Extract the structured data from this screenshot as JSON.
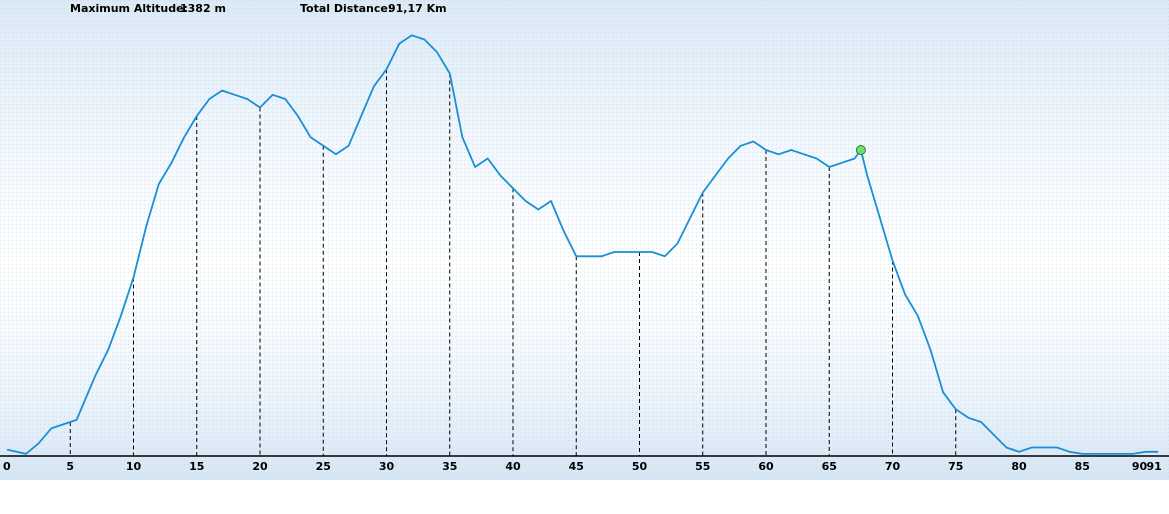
{
  "header": {
    "max_altitude_label": "Maximum Altitude:",
    "max_altitude_value": "1382 m",
    "total_distance_label": "Total Distance:",
    "total_distance_value": "91,17 Km"
  },
  "chart_data": {
    "type": "area",
    "xlabel": "",
    "ylabel": "",
    "x_unit": "Km",
    "y_unit": "m",
    "xlim": [
      0,
      91.17
    ],
    "x_ticks": [
      0,
      5,
      10,
      15,
      20,
      25,
      30,
      35,
      40,
      45,
      50,
      55,
      60,
      65,
      70,
      75,
      80,
      85,
      90,
      91
    ],
    "x_tick_labels": [
      "0",
      "5",
      "10",
      "15",
      "20",
      "25",
      "30",
      "35",
      "40",
      "45",
      "50",
      "55",
      "60",
      "65",
      "70",
      "75",
      "80",
      "85",
      "90",
      "91"
    ],
    "max_altitude": 1382,
    "total_distance": 91.17,
    "altitude_scale": "relative",
    "series": [
      {
        "x": [
          0,
          1.5,
          2.5,
          3.5,
          4.5,
          5.5,
          6,
          7,
          8,
          9,
          10,
          11,
          12,
          13,
          14,
          15,
          16,
          17,
          18,
          19,
          20,
          21,
          22,
          23,
          24,
          25,
          26,
          27,
          28,
          29,
          30,
          31,
          32,
          33,
          34,
          35,
          36,
          37,
          38,
          39,
          40,
          41,
          42,
          43,
          44,
          45,
          46,
          47,
          48,
          49,
          50,
          51,
          52,
          53,
          54,
          55,
          56,
          57,
          58,
          59,
          60,
          61,
          62,
          63,
          64,
          65,
          66,
          67,
          67.5,
          68,
          69,
          70,
          71,
          72,
          73,
          74,
          75,
          76,
          77,
          78,
          79,
          80,
          81,
          82,
          83,
          84,
          85,
          86,
          87,
          88,
          89,
          90,
          91
        ],
        "y": [
          1.5,
          0.5,
          3,
          6.5,
          7.5,
          8.5,
          12,
          19,
          25,
          33,
          42,
          54,
          64,
          69,
          75,
          80,
          84,
          86,
          85,
          84,
          82,
          85,
          84,
          80,
          75,
          73,
          71,
          73,
          80,
          87,
          91,
          97,
          99,
          98,
          95,
          90,
          75,
          68,
          70,
          66,
          63,
          60,
          58,
          60,
          53,
          47,
          47,
          47,
          48,
          48,
          48,
          48,
          47,
          50,
          56,
          62,
          66,
          70,
          73,
          74,
          72,
          71,
          72,
          71,
          70,
          68,
          69,
          70,
          72,
          66,
          56,
          46,
          38,
          33,
          25,
          15,
          11,
          9,
          8,
          5,
          2,
          1,
          2,
          2,
          2,
          1,
          0.5,
          0.5,
          0.5,
          0.5,
          0.5,
          1,
          1
        ]
      }
    ],
    "marker": {
      "x": 67.5,
      "y": 72,
      "color": "#6ee06e"
    },
    "line_color": "#1a8fd6",
    "grid": false
  }
}
